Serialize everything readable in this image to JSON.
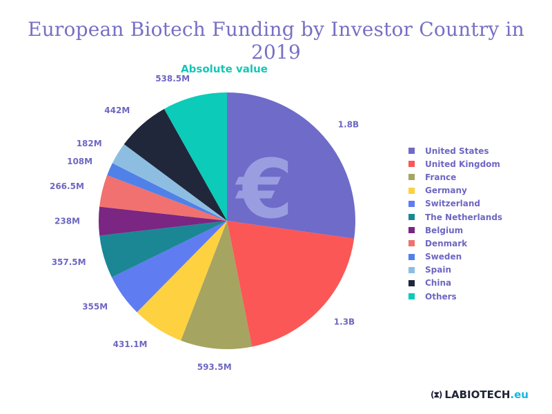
{
  "title": "European Biotech Funding by Investor Country in 2019",
  "subtitle": "Absolute value",
  "center_icon": "euro-sign-icon",
  "brand": {
    "icon": "dna-icon",
    "name": "LABIOTECH",
    "suffix": ".eu"
  },
  "chart_data": {
    "type": "pie",
    "title": "European Biotech Funding by Investor Country in 2019",
    "subtitle": "Absolute value",
    "legend_position": "right",
    "categories": [
      "United States",
      "United Kingdom",
      "France",
      "Germany",
      "Switzerland",
      "The Netherlands",
      "Belgium",
      "Denmark",
      "Sweden",
      "Spain",
      "China",
      "Others"
    ],
    "values": [
      1800,
      1300,
      593.5,
      431.1,
      355,
      357.5,
      238,
      266.5,
      108,
      182,
      442,
      538.5
    ],
    "value_unit": "M",
    "labels": [
      "1.8B",
      "1.3B",
      "593.5M",
      "431.1M",
      "355M",
      "357.5M",
      "238M",
      "266.5M",
      "108M",
      "182M",
      "442M",
      "538.5M"
    ],
    "colors": [
      "#6f6bc9",
      "#fb5757",
      "#a6a461",
      "#fdd140",
      "#5f7df0",
      "#1b8795",
      "#7a2682",
      "#f0716f",
      "#5081e9",
      "#8dbee2",
      "#21273a",
      "#0ccbb8"
    ]
  }
}
